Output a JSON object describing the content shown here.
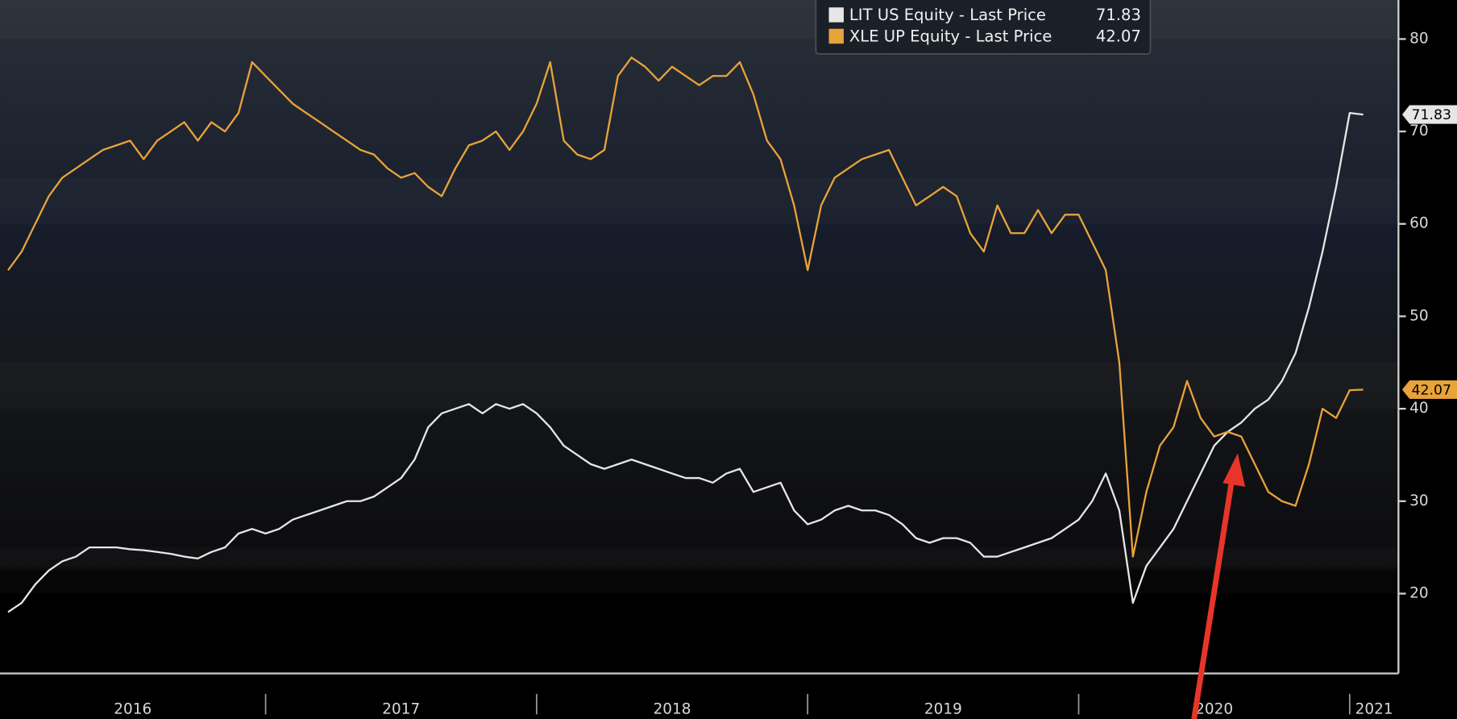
{
  "chart_data": {
    "type": "line",
    "x": [
      2016.05,
      2016.1,
      2016.15,
      2016.2,
      2016.25,
      2016.3,
      2016.35,
      2016.4,
      2016.45,
      2016.5,
      2016.55,
      2016.6,
      2016.65,
      2016.7,
      2016.75,
      2016.8,
      2016.85,
      2016.9,
      2016.95,
      2017.0,
      2017.05,
      2017.1,
      2017.15,
      2017.2,
      2017.25,
      2017.3,
      2017.35,
      2017.4,
      2017.45,
      2017.5,
      2017.55,
      2017.6,
      2017.65,
      2017.7,
      2017.75,
      2017.8,
      2017.85,
      2017.9,
      2017.95,
      2018.0,
      2018.05,
      2018.1,
      2018.15,
      2018.2,
      2018.25,
      2018.3,
      2018.35,
      2018.4,
      2018.45,
      2018.5,
      2018.55,
      2018.6,
      2018.65,
      2018.7,
      2018.75,
      2018.8,
      2018.85,
      2018.9,
      2018.95,
      2019.0,
      2019.05,
      2019.1,
      2019.15,
      2019.2,
      2019.25,
      2019.3,
      2019.35,
      2019.4,
      2019.45,
      2019.5,
      2019.55,
      2019.6,
      2019.65,
      2019.7,
      2019.75,
      2019.8,
      2019.85,
      2019.9,
      2019.95,
      2020.0,
      2020.05,
      2020.1,
      2020.15,
      2020.2,
      2020.25,
      2020.3,
      2020.35,
      2020.4,
      2020.45,
      2020.5,
      2020.55,
      2020.6,
      2020.65,
      2020.7,
      2020.75,
      2020.8,
      2020.85,
      2020.9,
      2020.95,
      2021.0,
      2021.05
    ],
    "series": [
      {
        "name": "LIT US Equity - Last Price",
        "color": "#e6e6e6",
        "values": [
          18,
          19,
          21,
          22.5,
          23.5,
          24,
          25,
          25,
          25,
          24.8,
          24.7,
          24.5,
          24.3,
          24,
          23.8,
          24.5,
          25,
          26.5,
          27,
          26.5,
          27,
          28,
          28.5,
          29,
          29.5,
          30,
          30,
          30.5,
          31.5,
          32.5,
          34.5,
          38,
          39.5,
          40,
          40.5,
          39.5,
          40.5,
          40,
          40.5,
          39.5,
          38,
          36,
          35,
          34,
          33.5,
          34,
          34.5,
          34,
          33.5,
          33,
          32.5,
          32.5,
          32,
          33,
          33.5,
          31,
          31.5,
          32,
          29,
          27.5,
          28,
          29,
          29.5,
          29,
          29,
          28.5,
          27.5,
          26,
          25.5,
          26,
          26,
          25.5,
          24,
          24,
          24.5,
          25,
          25.5,
          26,
          27,
          28,
          30,
          33,
          29,
          19,
          23,
          25,
          27,
          30,
          33,
          36,
          37.5,
          38.5,
          40,
          41,
          43,
          46,
          51,
          57,
          64,
          72,
          71.83
        ]
      },
      {
        "name": "XLE UP Equity - Last Price",
        "color": "#e8a33a",
        "values": [
          55,
          57,
          60,
          63,
          65,
          66,
          67,
          68,
          68.5,
          69,
          67,
          69,
          70,
          71,
          69,
          71,
          70,
          72,
          77.5,
          76,
          74.5,
          73,
          72,
          71,
          70,
          69,
          68,
          67.5,
          66,
          65,
          65.5,
          64,
          63,
          66,
          68.5,
          69,
          70,
          68,
          70,
          73,
          77.5,
          69,
          67.5,
          67,
          68,
          76,
          78,
          77,
          75.5,
          77,
          76,
          75,
          76,
          76,
          77.5,
          74,
          69,
          67,
          62,
          55,
          62,
          65,
          66,
          67,
          67.5,
          68,
          65,
          62,
          63,
          64,
          63,
          59,
          57,
          62,
          59,
          59,
          61.5,
          59,
          61,
          61,
          58,
          55,
          45,
          24,
          31,
          36,
          38,
          43,
          39,
          37,
          37.5,
          37,
          34,
          31,
          30,
          29.5,
          34,
          40,
          39,
          42,
          42.07
        ]
      }
    ],
    "xlim": [
      2016.02,
      2021.18
    ],
    "xticks": [
      {
        "value": 2016,
        "label": "2016"
      },
      {
        "value": 2017,
        "label": "2017"
      },
      {
        "value": 2018,
        "label": "2018"
      },
      {
        "value": 2019,
        "label": "2019"
      },
      {
        "value": 2020,
        "label": "2020"
      },
      {
        "value": 2021,
        "label": "2021"
      }
    ],
    "ylim": [
      11.36,
      84.22
    ],
    "yticks": [
      20,
      30,
      40,
      50,
      60,
      70,
      80
    ],
    "legend": "upper center"
  }
}
